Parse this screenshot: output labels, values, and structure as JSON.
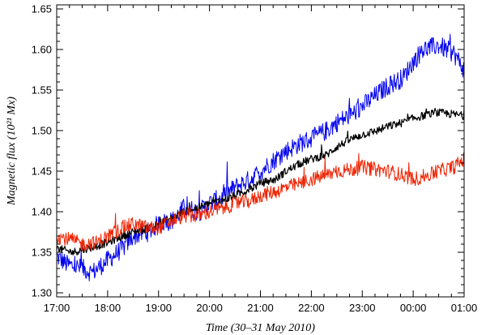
{
  "chart_data": {
    "type": "line",
    "xlabel": "Time (30–31 May 2010)",
    "ylabel": "Magnetic flux (10²¹ Mx)",
    "x_ticks": [
      "17:00",
      "18:00",
      "19:00",
      "20:00",
      "21:00",
      "22:00",
      "23:00",
      "00:00",
      "01:00"
    ],
    "y_ticks": [
      "1.30",
      "1.35",
      "1.40",
      "1.45",
      "1.50",
      "1.55",
      "1.60",
      "1.65"
    ],
    "xlim_hours": [
      17,
      25
    ],
    "ylim": [
      1.295,
      1.655
    ],
    "grid": false,
    "series": [
      {
        "color": "#0000ee",
        "noise": 0.012,
        "x": [
          17.0,
          17.2,
          17.5,
          17.7,
          18.0,
          18.3,
          18.5,
          18.8,
          19.0,
          19.3,
          19.5,
          19.8,
          20.0,
          20.3,
          20.5,
          20.8,
          21.0,
          21.3,
          21.5,
          21.8,
          22.0,
          22.3,
          22.5,
          22.8,
          23.0,
          23.3,
          23.5,
          23.8,
          24.0,
          24.2,
          24.5,
          24.8,
          25.0
        ],
        "values": [
          1.345,
          1.335,
          1.33,
          1.325,
          1.34,
          1.355,
          1.37,
          1.375,
          1.385,
          1.39,
          1.405,
          1.4,
          1.41,
          1.42,
          1.43,
          1.44,
          1.45,
          1.465,
          1.475,
          1.485,
          1.49,
          1.5,
          1.51,
          1.52,
          1.53,
          1.545,
          1.555,
          1.565,
          1.585,
          1.6,
          1.605,
          1.595,
          1.575
        ]
      },
      {
        "color": "#000000",
        "noise": 0.005,
        "x": [
          17.0,
          17.3,
          17.5,
          17.8,
          18.0,
          18.3,
          18.5,
          18.8,
          19.0,
          19.3,
          19.5,
          19.8,
          20.0,
          20.3,
          20.5,
          20.8,
          21.0,
          21.3,
          21.5,
          21.8,
          22.0,
          22.3,
          22.5,
          22.8,
          23.0,
          23.3,
          23.5,
          23.8,
          24.0,
          24.3,
          24.5,
          24.8,
          25.0
        ],
        "values": [
          1.355,
          1.35,
          1.353,
          1.358,
          1.362,
          1.37,
          1.375,
          1.38,
          1.385,
          1.393,
          1.4,
          1.405,
          1.41,
          1.415,
          1.42,
          1.428,
          1.435,
          1.44,
          1.45,
          1.46,
          1.465,
          1.47,
          1.48,
          1.49,
          1.495,
          1.5,
          1.505,
          1.51,
          1.515,
          1.52,
          1.522,
          1.52,
          1.518
        ]
      },
      {
        "color": "#ee2200",
        "noise": 0.009,
        "x": [
          17.0,
          17.3,
          17.5,
          17.8,
          18.0,
          18.3,
          18.5,
          18.8,
          19.0,
          19.3,
          19.5,
          19.8,
          20.0,
          20.3,
          20.5,
          20.8,
          21.0,
          21.3,
          21.5,
          21.8,
          22.0,
          22.3,
          22.5,
          22.8,
          23.0,
          23.3,
          23.5,
          23.8,
          24.0,
          24.3,
          24.5,
          24.8,
          25.0
        ],
        "values": [
          1.37,
          1.365,
          1.36,
          1.362,
          1.37,
          1.38,
          1.385,
          1.38,
          1.38,
          1.39,
          1.395,
          1.395,
          1.4,
          1.405,
          1.41,
          1.413,
          1.42,
          1.425,
          1.43,
          1.435,
          1.44,
          1.445,
          1.45,
          1.452,
          1.455,
          1.452,
          1.45,
          1.445,
          1.44,
          1.445,
          1.45,
          1.455,
          1.465
        ]
      }
    ]
  }
}
